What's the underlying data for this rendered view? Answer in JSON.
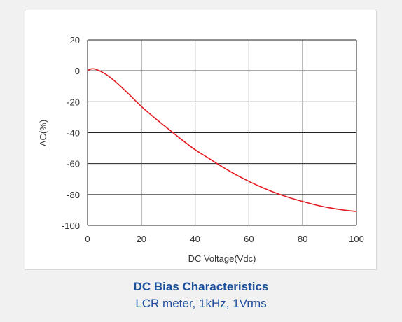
{
  "caption": {
    "title": "DC Bias Characteristics",
    "subtitle": "LCR meter, 1kHz, 1Vrms"
  },
  "colors": {
    "curve": "#e31b23",
    "grid": "#222222",
    "caption": "#1d4f9c"
  },
  "chart_data": {
    "type": "line",
    "title": "",
    "xlabel": "DC Voltage(Vdc)",
    "ylabel": "ΔC(%)",
    "xlim": [
      0,
      100
    ],
    "ylim": [
      -100,
      20
    ],
    "xticks": [
      0,
      20,
      40,
      60,
      80,
      100
    ],
    "yticks": [
      20,
      0,
      -20,
      -40,
      -60,
      -80,
      -100
    ],
    "grid": true,
    "series": [
      {
        "x": [
          0,
          1,
          2,
          3,
          4,
          5,
          7,
          10,
          15,
          20,
          25,
          30,
          35,
          40,
          45,
          50,
          55,
          60,
          65,
          70,
          75,
          80,
          85,
          90,
          95,
          100
        ],
        "y": [
          0.2,
          1.0,
          1.3,
          1.0,
          0.3,
          -0.5,
          -2.5,
          -6.5,
          -14.5,
          -23,
          -30.5,
          -37.5,
          -44.5,
          -51,
          -56.5,
          -62,
          -67,
          -71.5,
          -75.5,
          -79,
          -82,
          -84.5,
          -86.8,
          -88.6,
          -90,
          -91
        ]
      }
    ]
  }
}
